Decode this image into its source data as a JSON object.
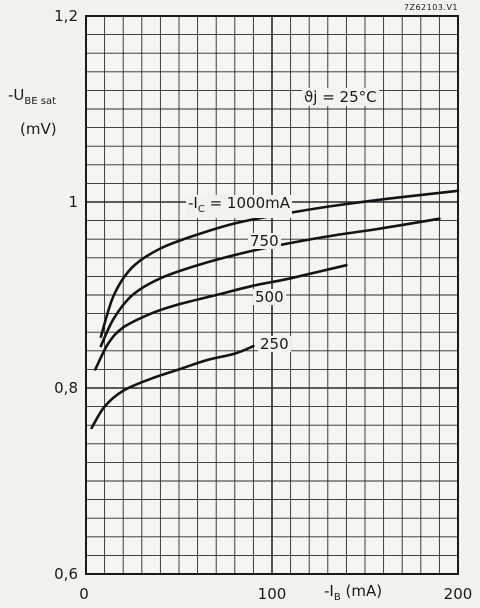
{
  "chart_data": {
    "type": "line",
    "code": "7Z62103.V1",
    "condition": "ϑj = 25°C",
    "ylabel": "-U",
    "ylabel_sub": "BE sat",
    "ylabel_unit": "(mV)",
    "xlabel": "-I",
    "xlabel_sub": "B",
    "xlabel_unit": "(mA)",
    "xlim": [
      0,
      200
    ],
    "ylim": [
      0.6,
      1.2
    ],
    "x_ticks": [
      {
        "value": 0,
        "label": "0"
      },
      {
        "value": 100,
        "label": "100"
      },
      {
        "value": 200,
        "label": "200"
      }
    ],
    "y_ticks": [
      {
        "value": 0.6,
        "label": "0,6"
      },
      {
        "value": 0.8,
        "label": "0,8"
      },
      {
        "value": 1.0,
        "label": "1"
      },
      {
        "value": 1.2,
        "label": "1,2"
      }
    ],
    "grid": true,
    "series": [
      {
        "label": "-IC = 1000 mA",
        "label_prefix": "-I",
        "label_sub": "C",
        "label_suffix": " = 1000mA",
        "x": [
          8,
          15,
          25,
          40,
          60,
          80,
          100,
          130,
          160,
          200
        ],
        "y": [
          0.855,
          0.9,
          0.93,
          0.95,
          0.965,
          0.977,
          0.985,
          0.995,
          1.003,
          1.012
        ]
      },
      {
        "label": "750",
        "x": [
          8,
          15,
          25,
          40,
          60,
          80,
          100,
          130,
          160,
          190
        ],
        "y": [
          0.845,
          0.875,
          0.9,
          0.918,
          0.932,
          0.943,
          0.952,
          0.963,
          0.972,
          0.982
        ]
      },
      {
        "label": "500",
        "x": [
          5,
          12,
          20,
          35,
          50,
          70,
          90,
          110,
          140
        ],
        "y": [
          0.82,
          0.848,
          0.865,
          0.88,
          0.89,
          0.9,
          0.91,
          0.918,
          0.932
        ]
      },
      {
        "label": "250",
        "x": [
          3,
          10,
          20,
          35,
          50,
          65,
          80,
          90
        ],
        "y": [
          0.757,
          0.78,
          0.797,
          0.81,
          0.82,
          0.83,
          0.837,
          0.845
        ]
      }
    ]
  }
}
